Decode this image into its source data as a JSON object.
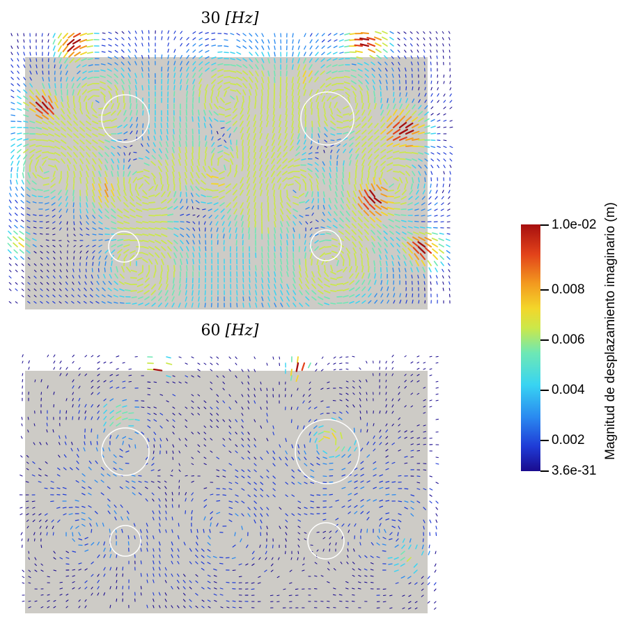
{
  "panels": [
    {
      "title_num": "30 ",
      "title_unit": "[Hz]"
    },
    {
      "title_num": "60 ",
      "title_unit": "[Hz]"
    }
  ],
  "colorbar": {
    "title": "Magnitud de desplazamiento imaginario (m)",
    "ticks": [
      "1.0e-02",
      "0.008",
      "0.006",
      "0.004",
      "0.002",
      "3.6e-31"
    ],
    "colormap": [
      "#1a0b8e",
      "#1f3bd6",
      "#2a8af0",
      "#38d4f2",
      "#6ee8b4",
      "#cbe84a",
      "#f3d62a",
      "#f39a1f",
      "#e2421a",
      "#a60f0f"
    ]
  },
  "colors": {
    "background_field": "#cdcbc6",
    "circle_stroke": "#ffffff"
  }
}
